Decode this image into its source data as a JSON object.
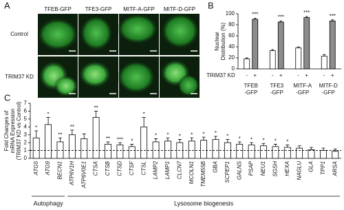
{
  "panel_a": {
    "label": "A",
    "columns": [
      "TFEB-GFP",
      "TFE3-GFP",
      "MITF-A-GFP",
      "MITF-D-GFP"
    ],
    "rows": [
      "Control",
      "TRIM37 KD"
    ]
  },
  "chart_data": [
    {
      "type": "bar",
      "panel": "B",
      "ylabel": [
        "Nuclear",
        "Distribution (%)"
      ],
      "row_label": "TRIM37 KD",
      "categories": [
        [
          "TFEB",
          "-GFP"
        ],
        [
          "TFE3",
          "-GFP"
        ],
        [
          "MITF-A",
          "-GFP"
        ],
        [
          "MITF-D",
          "-GFP"
        ]
      ],
      "series": [
        {
          "name": "-",
          "color": "#ffffff",
          "values": [
            18,
            33,
            38,
            23
          ],
          "errors": [
            2,
            2,
            2,
            3
          ]
        },
        {
          "name": "+",
          "color": "#8c8c8c",
          "values": [
            90,
            85,
            93,
            87
          ],
          "errors": [
            2,
            2,
            2,
            2
          ],
          "annotations": [
            "***",
            "***",
            "***",
            "***"
          ]
        }
      ],
      "ylim": [
        0,
        100
      ],
      "yticks": [
        0,
        20,
        40,
        60,
        80,
        100
      ]
    },
    {
      "type": "bar",
      "panel": "C",
      "ylabel": [
        "Fold Changes of",
        "mRNA Expression",
        "(TRIM37 KD vs Control)"
      ],
      "categories": [
        "ATG5",
        "ATG9",
        "BECN1",
        "ATP6V1H",
        "ATP6V0E1",
        "CTSA",
        "CTSB",
        "CTSD",
        "CTSF",
        "CTSL",
        "LAMP2",
        "LAMP1",
        "CLCN7",
        "MCOLN1",
        "TMEM55B",
        "GBA",
        "SCPEP1",
        "GALNS",
        "PSAP",
        "NEU1",
        "SGSH",
        "HEXA",
        "NAGLU",
        "GLA",
        "TPP1",
        "ARSA"
      ],
      "values": [
        2.6,
        4.3,
        2.1,
        3.0,
        2.5,
        5.2,
        1.8,
        1.7,
        1.5,
        4.0,
        2.1,
        2.2,
        2.0,
        2.2,
        2.3,
        2.4,
        2.0,
        1.8,
        1.7,
        1.6,
        1.5,
        1.4,
        1.3,
        1.1,
        1.0,
        0.9
      ],
      "errors": [
        0.9,
        0.9,
        0.5,
        0.6,
        0.6,
        0.8,
        0.3,
        0.3,
        0.3,
        1.2,
        0.4,
        0.4,
        0.4,
        0.4,
        0.4,
        0.4,
        0.4,
        0.3,
        0.3,
        0.3,
        0.3,
        0.3,
        0.3,
        0.3,
        0.3,
        0.3
      ],
      "annotations": [
        "*",
        "*",
        "**",
        "**",
        null,
        "**",
        "**",
        "***",
        "*",
        "*",
        "*",
        "*",
        "*",
        "*",
        "*",
        "*",
        "*",
        "*",
        "*",
        "*",
        "*",
        "*",
        null,
        null,
        null,
        null
      ],
      "color": "#ffffff",
      "reference_line": 1,
      "groups": [
        {
          "name": "Autophagy",
          "from": 0,
          "to": 2
        },
        {
          "name": "Lysosome biogenesis",
          "from": 3,
          "to": 25
        }
      ],
      "ylim": [
        0,
        7
      ],
      "yticks": [
        0,
        1,
        2,
        3,
        4,
        5,
        6,
        7
      ]
    }
  ]
}
